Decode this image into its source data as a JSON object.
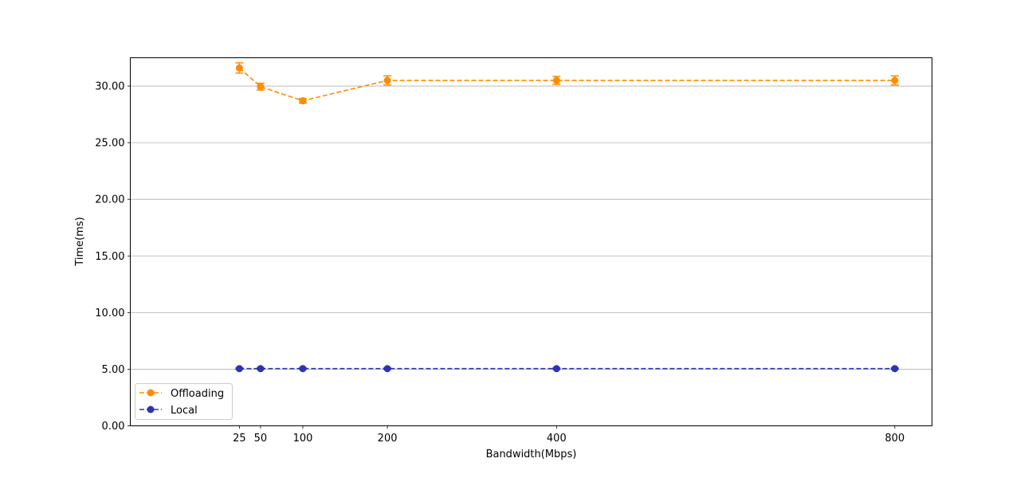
{
  "chart_data": {
    "type": "line",
    "title": "",
    "xlabel": "Bandwidth(Mbps)",
    "ylabel": "Time(ms)",
    "x": [
      25,
      50,
      100,
      200,
      400,
      800
    ],
    "x_ticks": [
      "25",
      "50",
      "100",
      "200",
      "400",
      "800"
    ],
    "xlim": [
      -104,
      844
    ],
    "ylim": [
      0,
      32.5
    ],
    "y_ticks": [
      "0.00",
      "5.00",
      "10.00",
      "15.00",
      "20.00",
      "25.00",
      "30.00"
    ],
    "grid": "horizontal",
    "legend_position": "bottom-left",
    "series": [
      {
        "name": "Offloading",
        "color": "#ff8c00",
        "linestyle": "dashed",
        "marker": "circle",
        "values": [
          31.6,
          29.95,
          28.7,
          30.5,
          30.5,
          30.5
        ],
        "errors": [
          0.45,
          0.3,
          0.2,
          0.4,
          0.35,
          0.4
        ]
      },
      {
        "name": "Local",
        "color": "#2e33b0",
        "linestyle": "dashed",
        "marker": "circle",
        "values": [
          5.05,
          5.05,
          5.05,
          5.05,
          5.05,
          5.05
        ],
        "errors": [
          0.05,
          0.05,
          0.05,
          0.05,
          0.05,
          0.05
        ]
      }
    ]
  }
}
